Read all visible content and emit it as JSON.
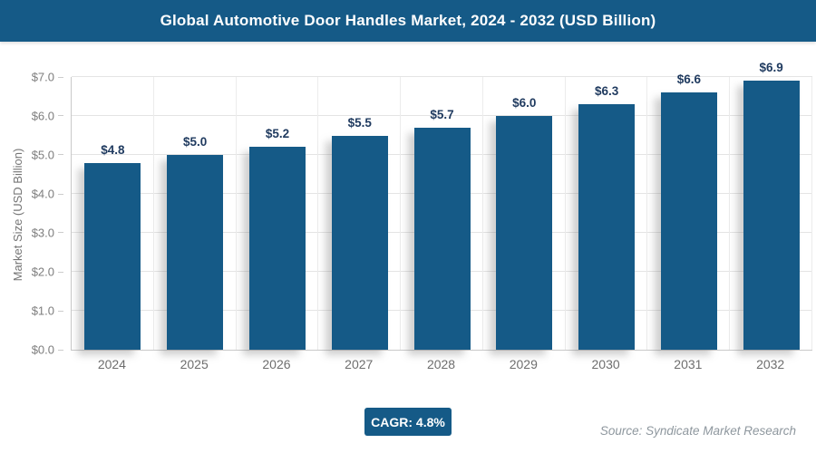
{
  "header": {
    "title": "Global Automotive Door Handles Market, 2024 - 2032 (USD Billion)"
  },
  "chart_data": {
    "type": "bar",
    "title": "Global Automotive Door Handles Market, 2024 - 2032 (USD Billion)",
    "categories": [
      "2024",
      "2025",
      "2026",
      "2027",
      "2028",
      "2029",
      "2030",
      "2031",
      "2032"
    ],
    "values": [
      4.8,
      5.0,
      5.2,
      5.5,
      5.7,
      6.0,
      6.3,
      6.6,
      6.9
    ],
    "value_labels": [
      "$4.8",
      "$5.0",
      "$5.2",
      "$5.5",
      "$5.7",
      "$6.0",
      "$6.3",
      "$6.6",
      "$6.9"
    ],
    "xlabel": "",
    "ylabel": "Market Size (USD Billion)",
    "ylim": [
      0,
      7
    ],
    "ytick_step": 1,
    "ytick_labels": [
      "$0.0",
      "$1.0",
      "$2.0",
      "$3.0",
      "$4.0",
      "$5.0",
      "$6.0",
      "$7.0"
    ],
    "grid": "both",
    "legend": "none",
    "bar_color": "#155a87",
    "value_label_color": "#1f3a5f"
  },
  "footer": {
    "cagr_label": "CAGR: 4.8%",
    "source": "Source: Syndicate Market Research"
  },
  "colors": {
    "accent": "#155a87",
    "header_bg": "#155a87",
    "tick_label": "#7d7d7d",
    "gridline": "#e4e4e4"
  }
}
